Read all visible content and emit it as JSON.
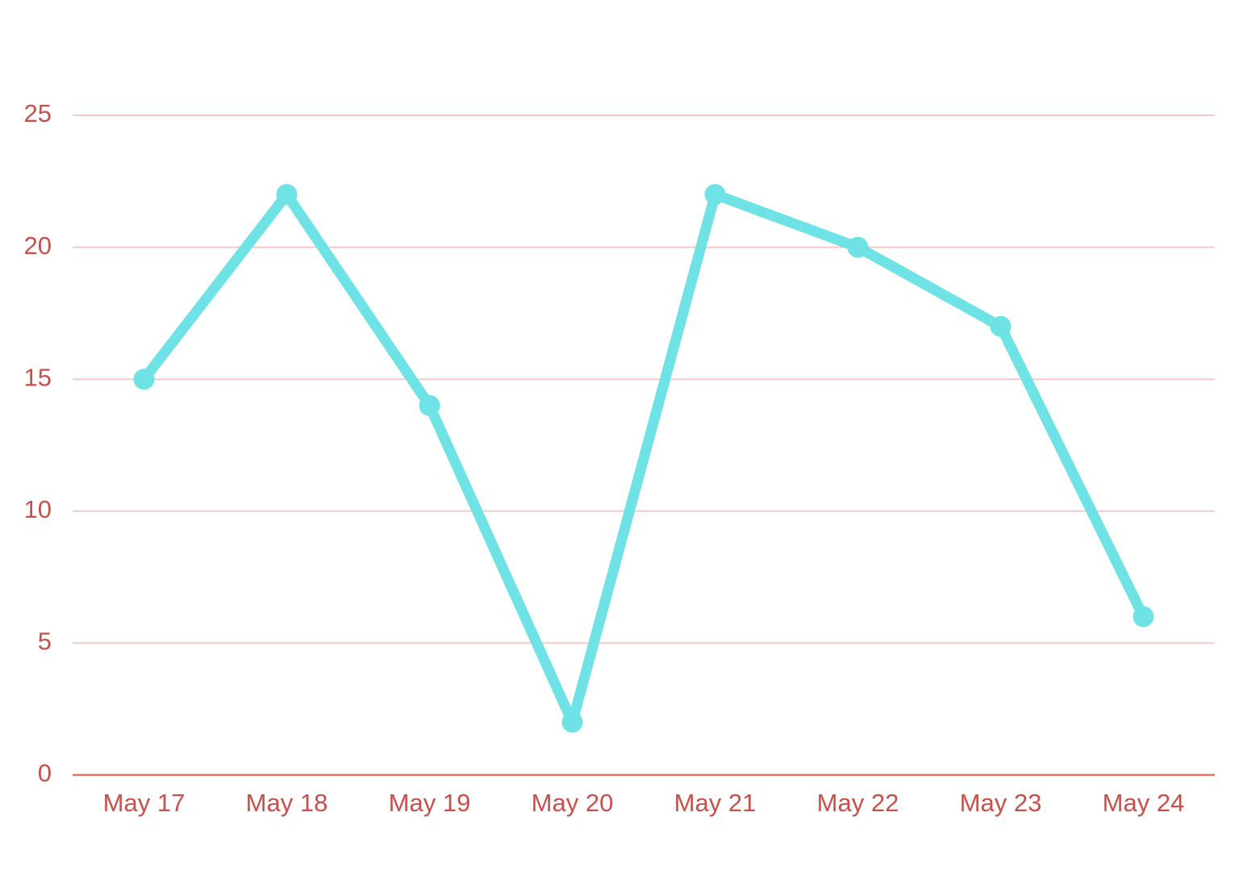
{
  "chart_data": {
    "type": "line",
    "categories": [
      "May 17",
      "May 18",
      "May 19",
      "May 20",
      "May 21",
      "May 22",
      "May 23",
      "May 24"
    ],
    "series": [
      {
        "color": "#6ee2e4",
        "values": [
          15,
          22,
          14,
          2,
          22,
          20,
          17,
          6
        ]
      }
    ],
    "ylim": [
      0,
      25
    ],
    "yticks": [
      0,
      5,
      10,
      15,
      20,
      25
    ],
    "grid": true
  }
}
